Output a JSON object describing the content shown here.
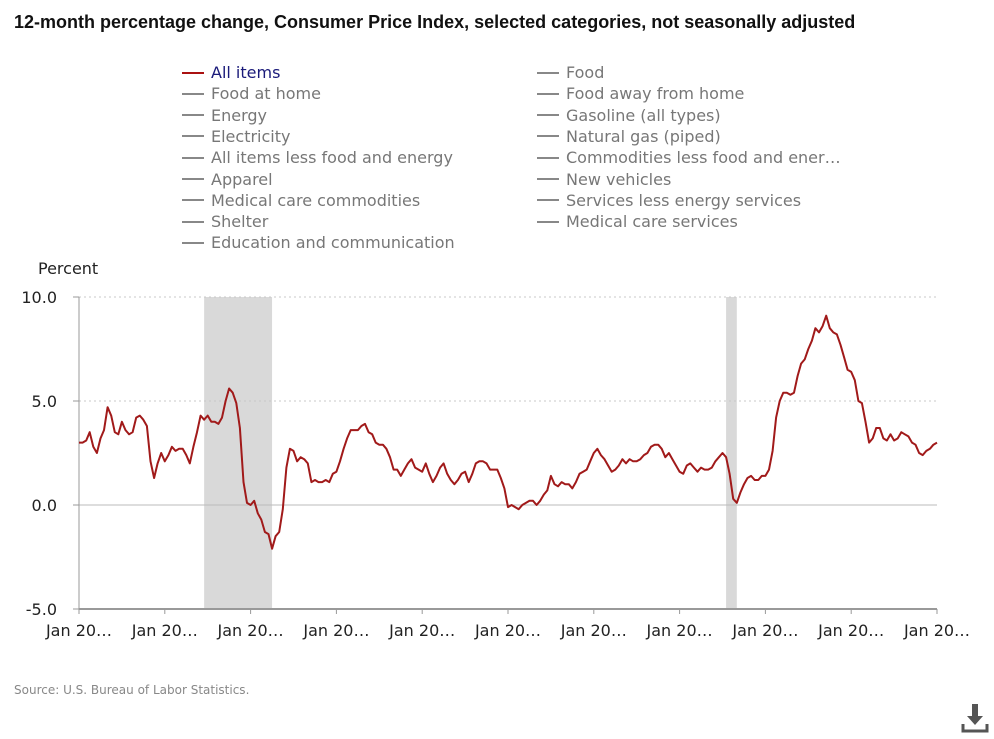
{
  "chart_data": {
    "type": "line",
    "title": "12-month percentage change, Consumer Price Index, selected categories, not seasonally adjusted",
    "ylabel": "Percent",
    "xlabel": "",
    "x_start": "2005-01",
    "x_end": "2025-01",
    "ylim": [
      -5,
      10
    ],
    "y_ticks": [
      "10.0",
      "5.0",
      "0.0",
      "-5.0"
    ],
    "y_tick_values": [
      10,
      5,
      0,
      -5
    ],
    "x_tick_labels": [
      "Jan 20…",
      "Jan 20…",
      "Jan 20…",
      "Jan 20…",
      "Jan 20…",
      "Jan 20…",
      "Jan 20…",
      "Jan 20…",
      "Jan 20…",
      "Jan 20…",
      "Jan 20…"
    ],
    "x_tick_dates": [
      "2005-01",
      "2007-01",
      "2009-01",
      "2011-01",
      "2013-01",
      "2015-01",
      "2017-01",
      "2019-01",
      "2021-01",
      "2023-01",
      "2025-01"
    ],
    "grid": "horizontal dotted",
    "recession_bands": [
      [
        "2007-12",
        "2009-06"
      ],
      [
        "2020-02",
        "2020-04"
      ]
    ],
    "legend": {
      "placement": "top",
      "items": [
        {
          "label": "All items",
          "active": true
        },
        {
          "label": "Food",
          "active": false
        },
        {
          "label": "Food at home",
          "active": false
        },
        {
          "label": "Food away from home",
          "active": false
        },
        {
          "label": "Energy",
          "active": false
        },
        {
          "label": "Gasoline (all types)",
          "active": false
        },
        {
          "label": "Electricity",
          "active": false
        },
        {
          "label": "Natural gas (piped)",
          "active": false
        },
        {
          "label": "All items less food and energy",
          "active": false
        },
        {
          "label": "Commodities less food and ener…",
          "active": false
        },
        {
          "label": "Apparel",
          "active": false
        },
        {
          "label": "New vehicles",
          "active": false
        },
        {
          "label": "Medical care commodities",
          "active": false
        },
        {
          "label": "Services less energy services",
          "active": false
        },
        {
          "label": "Shelter",
          "active": false
        },
        {
          "label": "Medical care services",
          "active": false
        },
        {
          "label": "Education and communication",
          "active": false
        }
      ]
    },
    "series": [
      {
        "name": "All items",
        "color": "#a11a1a",
        "start": "2005-01",
        "frequency": "monthly",
        "values": [
          3.0,
          3.0,
          3.1,
          3.5,
          2.8,
          2.5,
          3.2,
          3.6,
          4.7,
          4.3,
          3.5,
          3.4,
          4.0,
          3.6,
          3.4,
          3.5,
          4.2,
          4.3,
          4.1,
          3.8,
          2.1,
          1.3,
          2.0,
          2.5,
          2.1,
          2.4,
          2.8,
          2.6,
          2.7,
          2.7,
          2.4,
          2.0,
          2.8,
          3.5,
          4.3,
          4.1,
          4.3,
          4.0,
          4.0,
          3.9,
          4.2,
          5.0,
          5.6,
          5.4,
          4.9,
          3.7,
          1.1,
          0.1,
          0.0,
          0.2,
          -0.4,
          -0.7,
          -1.3,
          -1.4,
          -2.1,
          -1.5,
          -1.3,
          -0.2,
          1.8,
          2.7,
          2.6,
          2.1,
          2.3,
          2.2,
          2.0,
          1.1,
          1.2,
          1.1,
          1.1,
          1.2,
          1.1,
          1.5,
          1.6,
          2.1,
          2.7,
          3.2,
          3.6,
          3.6,
          3.6,
          3.8,
          3.9,
          3.5,
          3.4,
          3.0,
          2.9,
          2.9,
          2.7,
          2.3,
          1.7,
          1.7,
          1.4,
          1.7,
          2.0,
          2.2,
          1.8,
          1.7,
          1.6,
          2.0,
          1.5,
          1.1,
          1.4,
          1.8,
          2.0,
          1.5,
          1.2,
          1.0,
          1.2,
          1.5,
          1.6,
          1.1,
          1.5,
          2.0,
          2.1,
          2.1,
          2.0,
          1.7,
          1.7,
          1.7,
          1.3,
          0.8,
          -0.1,
          0.0,
          -0.1,
          -0.2,
          0.0,
          0.1,
          0.2,
          0.2,
          0.0,
          0.2,
          0.5,
          0.7,
          1.4,
          1.0,
          0.9,
          1.1,
          1.0,
          1.0,
          0.8,
          1.1,
          1.5,
          1.6,
          1.7,
          2.1,
          2.5,
          2.7,
          2.4,
          2.2,
          1.9,
          1.6,
          1.7,
          1.9,
          2.2,
          2.0,
          2.2,
          2.1,
          2.1,
          2.2,
          2.4,
          2.5,
          2.8,
          2.9,
          2.9,
          2.7,
          2.3,
          2.5,
          2.2,
          1.9,
          1.6,
          1.5,
          1.9,
          2.0,
          1.8,
          1.6,
          1.8,
          1.7,
          1.7,
          1.8,
          2.1,
          2.3,
          2.5,
          2.3,
          1.5,
          0.3,
          0.1,
          0.6,
          1.0,
          1.3,
          1.4,
          1.2,
          1.2,
          1.4,
          1.4,
          1.7,
          2.6,
          4.2,
          5.0,
          5.4,
          5.4,
          5.3,
          5.4,
          6.2,
          6.8,
          7.0,
          7.5,
          7.9,
          8.5,
          8.3,
          8.6,
          9.1,
          8.5,
          8.3,
          8.2,
          7.7,
          7.1,
          6.5,
          6.4,
          6.0,
          5.0,
          4.9,
          4.0,
          3.0,
          3.2,
          3.7,
          3.7,
          3.2,
          3.1,
          3.4,
          3.1,
          3.2,
          3.5,
          3.4,
          3.3,
          3.0,
          2.9,
          2.5,
          2.4,
          2.6,
          2.7,
          2.9,
          3.0
        ]
      }
    ],
    "source": "Source: U.S. Bureau of Labor Statistics."
  },
  "colors": {
    "series": "#a11a1a",
    "recession": "#d9d9d9",
    "grid": "#c8c8c8",
    "axis": "#999999"
  },
  "download_icon": "download-icon"
}
